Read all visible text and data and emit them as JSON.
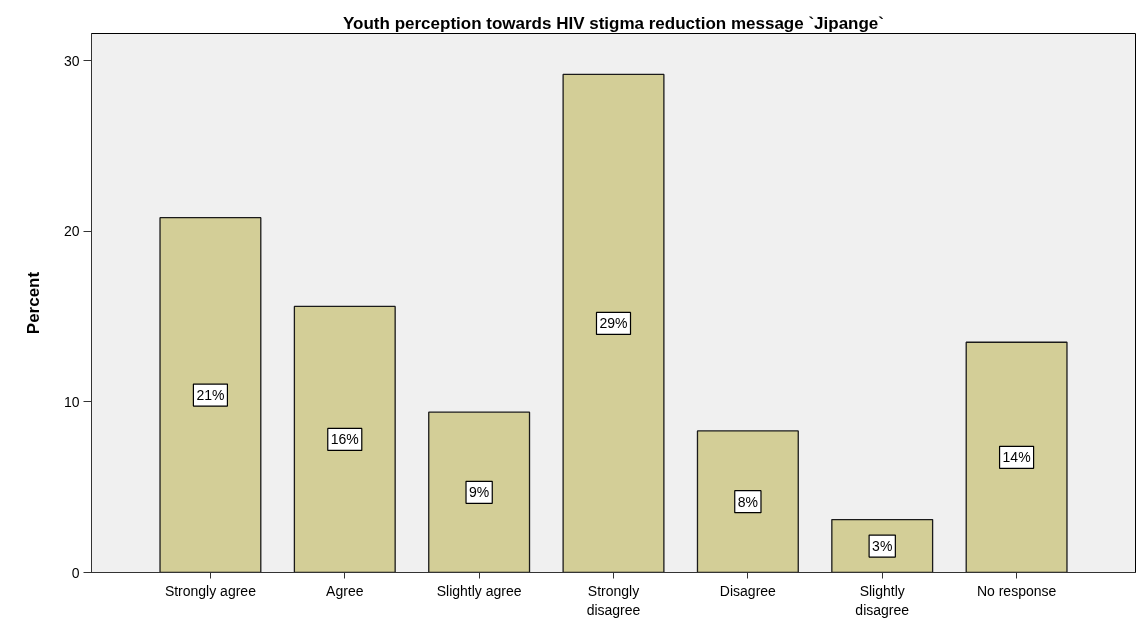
{
  "chart_data": {
    "type": "bar",
    "title": "Youth perception towards HIV stigma reduction message `Jipange`",
    "ylabel": "Percent",
    "categories": [
      "Strongly agree",
      "Agree",
      "Slightly agree",
      "Strongly disagree",
      "Disagree",
      "Slightly disagree",
      "No response"
    ],
    "values": [
      20.8,
      15.6,
      9.4,
      29.2,
      8.3,
      3.1,
      13.5
    ],
    "value_labels": [
      "21%",
      "16%",
      "9%",
      "29%",
      "8%",
      "3%",
      "14%"
    ],
    "color": "#d3ce97",
    "ylim": [
      0,
      31.6
    ],
    "yticks": [
      0,
      10,
      20,
      30
    ]
  }
}
